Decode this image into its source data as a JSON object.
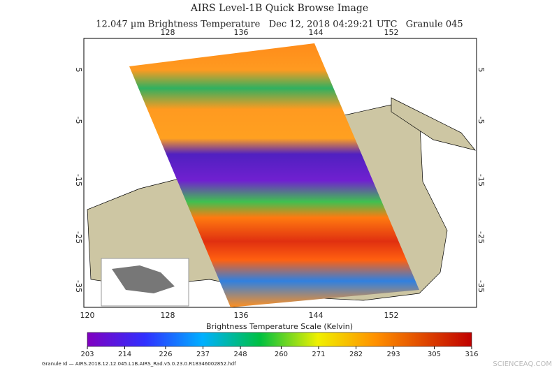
{
  "header": {
    "title": "AIRS Level-1B Quick Browse Image",
    "subtitle": "12.047 µm Brightness Temperature   Dec 12, 2018 04:29:21 UTC   Granule 045"
  },
  "map": {
    "top_lon_labels": [
      "128",
      "136",
      "144",
      "152"
    ],
    "bottom_lon_labels": [
      "120",
      "128",
      "136",
      "144",
      "152"
    ],
    "lat_labels": [
      "5",
      "-5",
      "-15",
      "-25",
      "-35"
    ]
  },
  "colorbar": {
    "title": "Brightness Temperature Scale (Kelvin)",
    "ticks": [
      203,
      214,
      226,
      237,
      248,
      260,
      271,
      282,
      293,
      305,
      316
    ]
  },
  "footer": {
    "granule_id": "Granule Id — AIRS.2018.12.12.045.L1B.AIRS_Rad.v5.0.23.0.R18346002852.hdf",
    "watermark": "SCIENCEAQ.COM"
  }
}
